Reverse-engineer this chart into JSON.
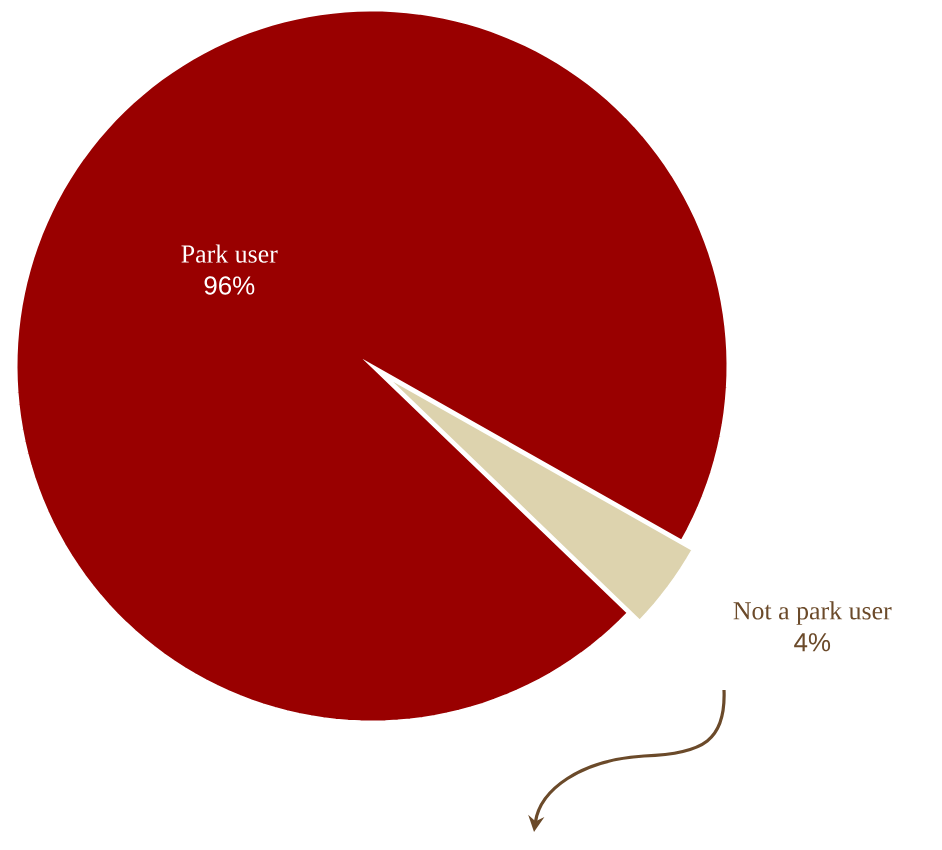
{
  "chart_data": {
    "type": "pie",
    "categories": [
      "Park user",
      "Not a park user"
    ],
    "values": [
      96,
      4
    ],
    "colors": [
      "#990000",
      "#ddd3ae"
    ],
    "value_labels": [
      "96%",
      "4%"
    ]
  }
}
